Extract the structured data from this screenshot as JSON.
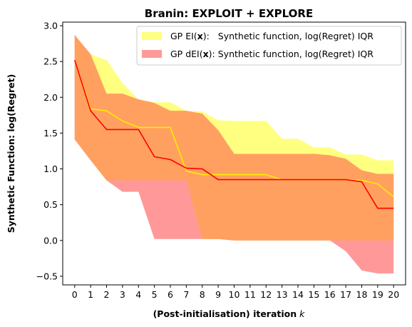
{
  "chart_data": {
    "type": "area",
    "title": "Branin: EXPLOIT + EXPLORE",
    "xlabel": "(Post-initialisation) iteration",
    "xlabel_var": "k",
    "ylabel": "Synthetic Function: log(Regret)",
    "x": [
      0,
      1,
      2,
      3,
      4,
      5,
      6,
      7,
      8,
      9,
      10,
      11,
      12,
      13,
      14,
      15,
      16,
      17,
      18,
      19,
      20
    ],
    "xlim": [
      -0.75,
      20.75
    ],
    "ylim": [
      -0.62,
      3.05
    ],
    "xticks": [
      "0",
      "1",
      "2",
      "3",
      "4",
      "5",
      "6",
      "7",
      "8",
      "9",
      "10",
      "11",
      "12",
      "13",
      "14",
      "15",
      "16",
      "17",
      "18",
      "19",
      "20"
    ],
    "yticks": [
      "−0.5",
      "0.0",
      "0.5",
      "1.0",
      "1.5",
      "2.0",
      "2.5",
      "3.0"
    ],
    "ytick_values": [
      -0.5,
      0.0,
      0.5,
      1.0,
      1.5,
      2.0,
      2.5,
      3.0
    ],
    "grid": false,
    "legend_position": "top-right",
    "series": [
      {
        "name": "GP EI(x):   Synthetic function, log(Regret) IQR",
        "legend_prefix": "GP EI(",
        "legend_bold": "x",
        "legend_suffix": "):   Synthetic function, log(Regret) IQR",
        "band_color": "#ffff80",
        "line_color": "#ffee00",
        "upper": [
          2.87,
          2.6,
          2.52,
          2.2,
          1.97,
          1.93,
          1.93,
          1.81,
          1.8,
          1.68,
          1.67,
          1.67,
          1.67,
          1.42,
          1.42,
          1.3,
          1.3,
          1.2,
          1.2,
          1.12,
          1.12
        ],
        "median": [
          2.52,
          1.84,
          1.81,
          1.67,
          1.58,
          1.58,
          1.58,
          0.97,
          0.92,
          0.92,
          0.92,
          0.92,
          0.92,
          0.85,
          0.85,
          0.85,
          0.85,
          0.85,
          0.84,
          0.79,
          0.61
        ],
        "lower": [
          1.41,
          1.12,
          0.84,
          0.84,
          0.84,
          0.84,
          0.84,
          0.84,
          0.02,
          0.02,
          0.0,
          0.0,
          0.0,
          0.0,
          0.0,
          0.0,
          0.0,
          0.0,
          0.0,
          0.0,
          0.0
        ]
      },
      {
        "name": "GP dEI(x): Synthetic function, log(Regret) IQR",
        "legend_prefix": "GP dEI(",
        "legend_bold": "x",
        "legend_suffix": "): Synthetic function, log(Regret) IQR",
        "band_color": "#ff9999",
        "line_color": "#ff0000",
        "upper": [
          2.87,
          2.6,
          2.05,
          2.05,
          1.97,
          1.92,
          1.81,
          1.81,
          1.77,
          1.54,
          1.21,
          1.21,
          1.21,
          1.21,
          1.21,
          1.21,
          1.19,
          1.14,
          0.98,
          0.93,
          0.93
        ],
        "median": [
          2.52,
          1.81,
          1.55,
          1.55,
          1.55,
          1.17,
          1.13,
          1.01,
          1.0,
          0.85,
          0.85,
          0.85,
          0.85,
          0.85,
          0.85,
          0.85,
          0.85,
          0.85,
          0.82,
          0.45,
          0.45
        ],
        "lower": [
          1.41,
          1.12,
          0.84,
          0.68,
          0.68,
          0.02,
          0.02,
          0.02,
          0.02,
          0.02,
          0.0,
          0.0,
          0.0,
          0.0,
          0.0,
          0.0,
          0.0,
          -0.15,
          -0.42,
          -0.46,
          -0.46
        ]
      }
    ],
    "overlap_color": "#ffa060"
  }
}
